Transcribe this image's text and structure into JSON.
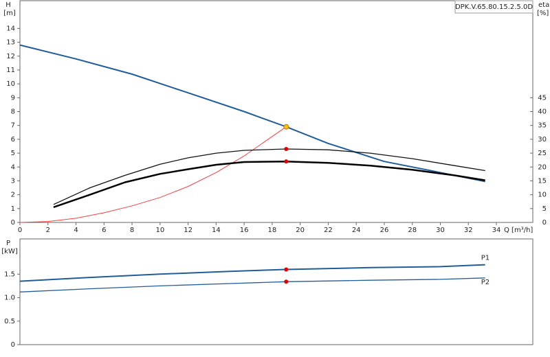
{
  "chart_data": [
    {
      "type": "line",
      "title": "DPK.V.65.80.15.2.5.0D",
      "y_label": "H",
      "y_unit": "[m]",
      "y2_label": "eta",
      "y2_unit": "[%]",
      "x_label": "Q [m³/h]",
      "xlim": [
        0,
        36.6
      ],
      "xticks": [
        0,
        2,
        4,
        6,
        8,
        10,
        12,
        14,
        16,
        18,
        20,
        22,
        24,
        26,
        28,
        30,
        32,
        34
      ],
      "ylim": [
        0,
        16
      ],
      "yticks": [
        0,
        1,
        2,
        3,
        4,
        5,
        6,
        7,
        8,
        9,
        10,
        11,
        12,
        13,
        14
      ],
      "y2lim": [
        0,
        80
      ],
      "y2ticks": [
        0,
        5,
        10,
        15,
        20,
        25,
        30,
        35,
        40,
        45
      ],
      "series": [
        {
          "color": "#1f5c99",
          "x": [
            0,
            4,
            8,
            12,
            16,
            19,
            22,
            26,
            30,
            33.2
          ],
          "values": [
            12.8,
            11.8,
            10.7,
            9.35,
            8.0,
            6.9,
            5.7,
            4.4,
            3.6,
            2.95
          ]
        },
        {
          "color": "#ff3b3b",
          "x": [
            0,
            2,
            4,
            6,
            8,
            10,
            12,
            14,
            16,
            18,
            19
          ],
          "values": [
            0,
            0.07,
            0.3,
            0.7,
            1.2,
            1.8,
            2.6,
            3.6,
            4.8,
            6.2,
            6.9
          ]
        },
        {
          "color": "#111111",
          "axis": "y2",
          "x": [
            2.4,
            5,
            7.5,
            10,
            12,
            14,
            16,
            19,
            22,
            25,
            28,
            31,
            33.2
          ],
          "values": [
            6.5,
            12.5,
            17,
            21,
            23.3,
            25,
            26,
            26.5,
            26.2,
            25,
            23,
            20.5,
            18.7
          ]
        },
        {
          "color": "#000000",
          "axis": "y2",
          "x": [
            2.4,
            5,
            7.5,
            10,
            12,
            14,
            16,
            19,
            22,
            25,
            28,
            31,
            33.2
          ],
          "values": [
            5.5,
            10,
            14.5,
            17.5,
            19.2,
            20.8,
            21.8,
            22,
            21.5,
            20.5,
            19,
            17,
            15.2
          ]
        }
      ],
      "markers": [
        {
          "x": 19,
          "y": 6.9,
          "color": "#ffc000"
        },
        {
          "x": 19,
          "y": 26.5,
          "axis": "y2",
          "color": "#e00000"
        },
        {
          "x": 19,
          "y": 22,
          "axis": "y2",
          "color": "#e00000"
        }
      ]
    },
    {
      "type": "line",
      "y_label": "P",
      "y_unit": "[kW]",
      "xlim": [
        0,
        36.6
      ],
      "ylim": [
        0,
        2.25
      ],
      "yticks": [
        0,
        0.5,
        {
          "value": 1,
          "label": "1.0"
        },
        1.5
      ],
      "series": [
        {
          "name": "P1",
          "color": "#1f5c99",
          "x": [
            0,
            5,
            10,
            15,
            19,
            25,
            30,
            33.2
          ],
          "values": [
            1.35,
            1.43,
            1.5,
            1.56,
            1.6,
            1.64,
            1.66,
            1.7
          ]
        },
        {
          "name": "P2",
          "color": "#1f5c99",
          "x": [
            0,
            5,
            10,
            15,
            19,
            25,
            30,
            33.2
          ],
          "values": [
            1.12,
            1.19,
            1.25,
            1.3,
            1.34,
            1.37,
            1.39,
            1.42
          ]
        }
      ],
      "markers": [
        {
          "x": 19,
          "y": 1.6,
          "color": "#e00000"
        },
        {
          "x": 19,
          "y": 1.34,
          "color": "#e00000"
        }
      ]
    }
  ]
}
